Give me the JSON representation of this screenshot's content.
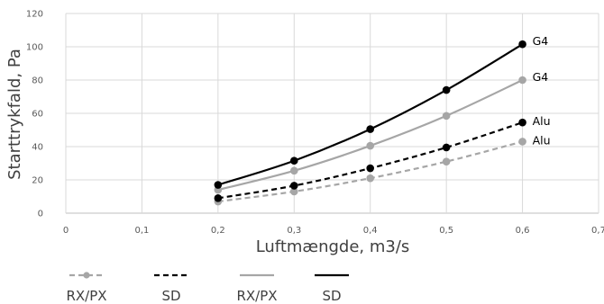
{
  "chart_data": {
    "type": "line",
    "title": "",
    "xlabel": "Luftmængde, m3/s",
    "ylabel": "Starttrykfald, Pa",
    "xlim": [
      0,
      0.7
    ],
    "ylim": [
      0,
      120
    ],
    "x_ticks": [
      "0",
      "0,1",
      "0,2",
      "0,3",
      "0,4",
      "0,5",
      "0,6",
      "0,7"
    ],
    "y_ticks": [
      "0",
      "20",
      "40",
      "60",
      "80",
      "100",
      "120"
    ],
    "grid": true,
    "x": [
      0.2,
      0.3,
      0.4,
      0.5,
      0.6
    ],
    "series": [
      {
        "name": "RX/PX",
        "color": "#a6a6a6",
        "dash": true,
        "end_label": "Alu",
        "values": [
          7,
          13,
          21,
          31,
          43
        ]
      },
      {
        "name": "SD",
        "color": "#000000",
        "dash": true,
        "end_label": "Alu",
        "values": [
          9,
          16.5,
          27,
          39.5,
          54.5
        ]
      },
      {
        "name": "RX/PX",
        "color": "#a6a6a6",
        "dash": false,
        "end_label": "G4",
        "values": [
          14,
          25.5,
          40.5,
          58.5,
          80
        ]
      },
      {
        "name": "SD",
        "color": "#000000",
        "dash": false,
        "end_label": "G4",
        "values": [
          17,
          31.5,
          50.5,
          74,
          101.5
        ]
      }
    ],
    "legend_position": "bottom-left"
  }
}
